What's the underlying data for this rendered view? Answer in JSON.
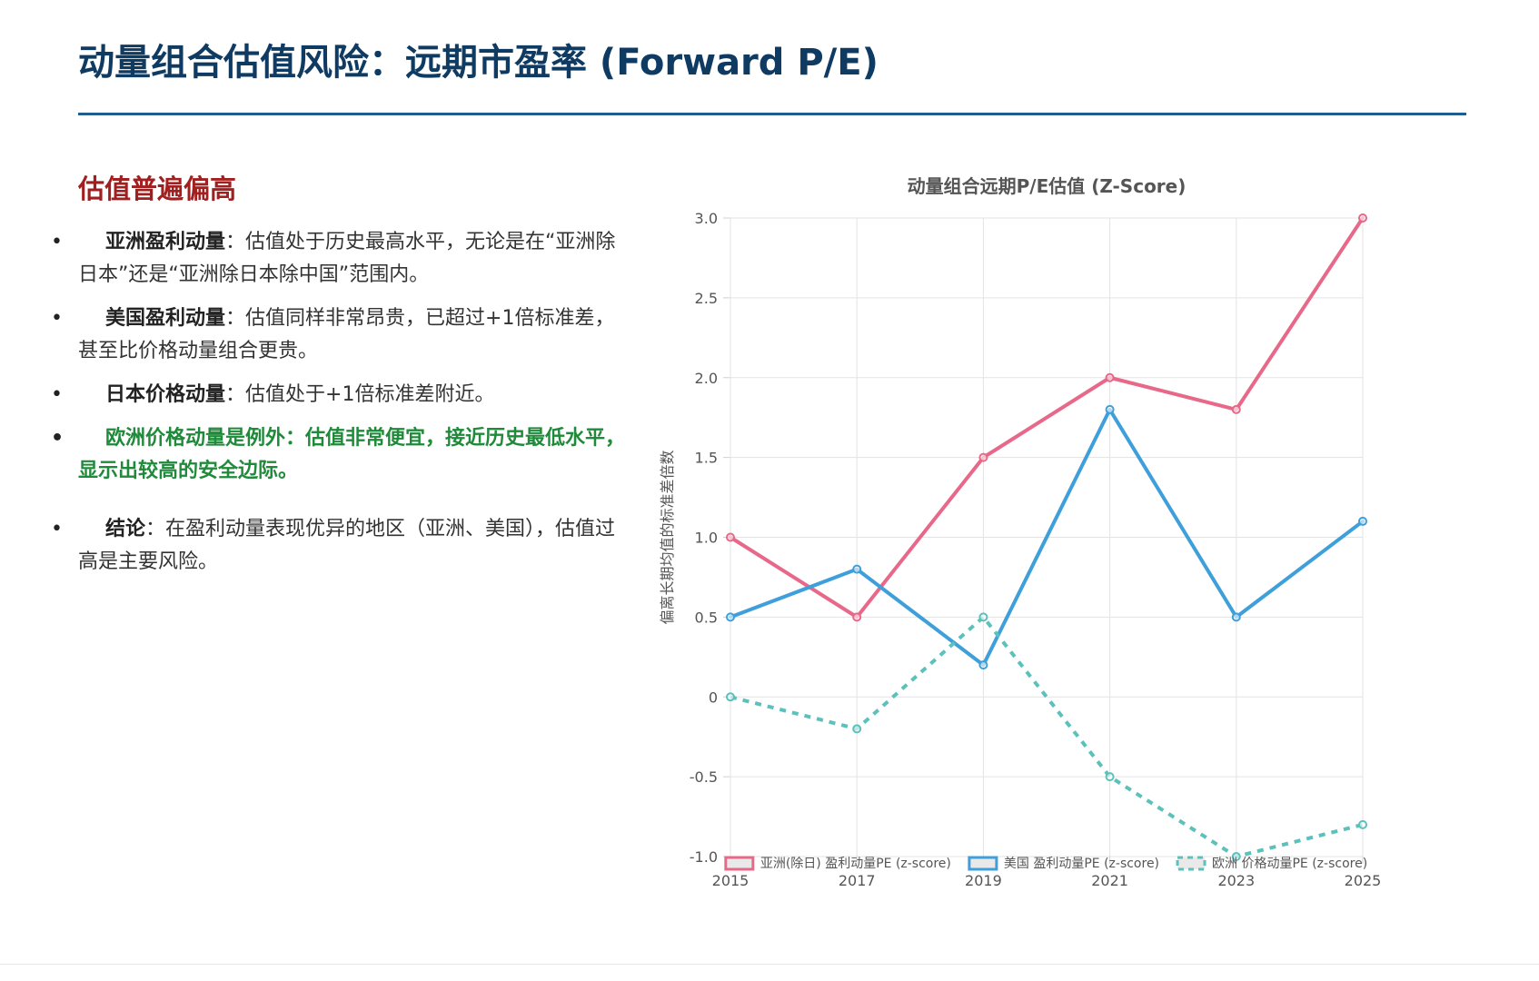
{
  "header": {
    "title": "动量组合估值风险：远期市盈率 (Forward P/E)"
  },
  "commentary": {
    "heading": "估值普遍偏高",
    "points": [
      {
        "label": "亚洲盈利动量",
        "text": "：估值处于历史最高水平，无论是在“亚洲除日本”还是“亚洲除日本除中国”范围内。"
      },
      {
        "label": "美国盈利动量",
        "text": "：估值同样非常昂贵，已超过+1倍标准差，甚至比价格动量组合更贵。"
      },
      {
        "label": "日本价格动量",
        "text": "：估值处于+1倍标准差附近。"
      },
      {
        "label": "欧洲价格动量是例外",
        "text": "：估值非常便宜，接近历史最低水平，显示出较高的安全边际。"
      },
      {
        "label": "结论",
        "text": "：在盈利动量表现优异的地区（亚洲、美国），估值过高是主要风险。"
      }
    ]
  },
  "chart_data": {
    "type": "line",
    "title": "动量组合远期P/E估值 (Z-Score)",
    "xlabel": "",
    "ylabel": "偏离长期均值的标准差倍数",
    "x": [
      "2015",
      "2017",
      "2019",
      "2021",
      "2023",
      "2025"
    ],
    "ylim": [
      -1.0,
      3.0
    ],
    "yticks": [
      -1.0,
      -0.5,
      0,
      0.5,
      1.0,
      1.5,
      2.0,
      2.5,
      3.0
    ],
    "ytick_labels": [
      "-1.0",
      "-0.5",
      "0",
      "0.5",
      "1.0",
      "1.5",
      "2.0",
      "2.5",
      "3.0"
    ],
    "grid": true,
    "legend_position": "bottom",
    "series": [
      {
        "name": "亚洲(除日) 盈利动量PE (z-score)",
        "values": [
          1.0,
          0.5,
          1.5,
          2.0,
          1.8,
          3.0
        ],
        "color": "#e8688a",
        "dashed": false
      },
      {
        "name": "美国 盈利动量PE (z-score)",
        "values": [
          0.5,
          0.8,
          0.2,
          1.8,
          0.5,
          1.1
        ],
        "color": "#3e9fdb",
        "dashed": false
      },
      {
        "name": "欧洲 价格动量PE (z-score)",
        "values": [
          0.0,
          -0.2,
          0.5,
          -0.5,
          -1.0,
          -0.8
        ],
        "color": "#5cc0bb",
        "dashed": true
      }
    ]
  }
}
